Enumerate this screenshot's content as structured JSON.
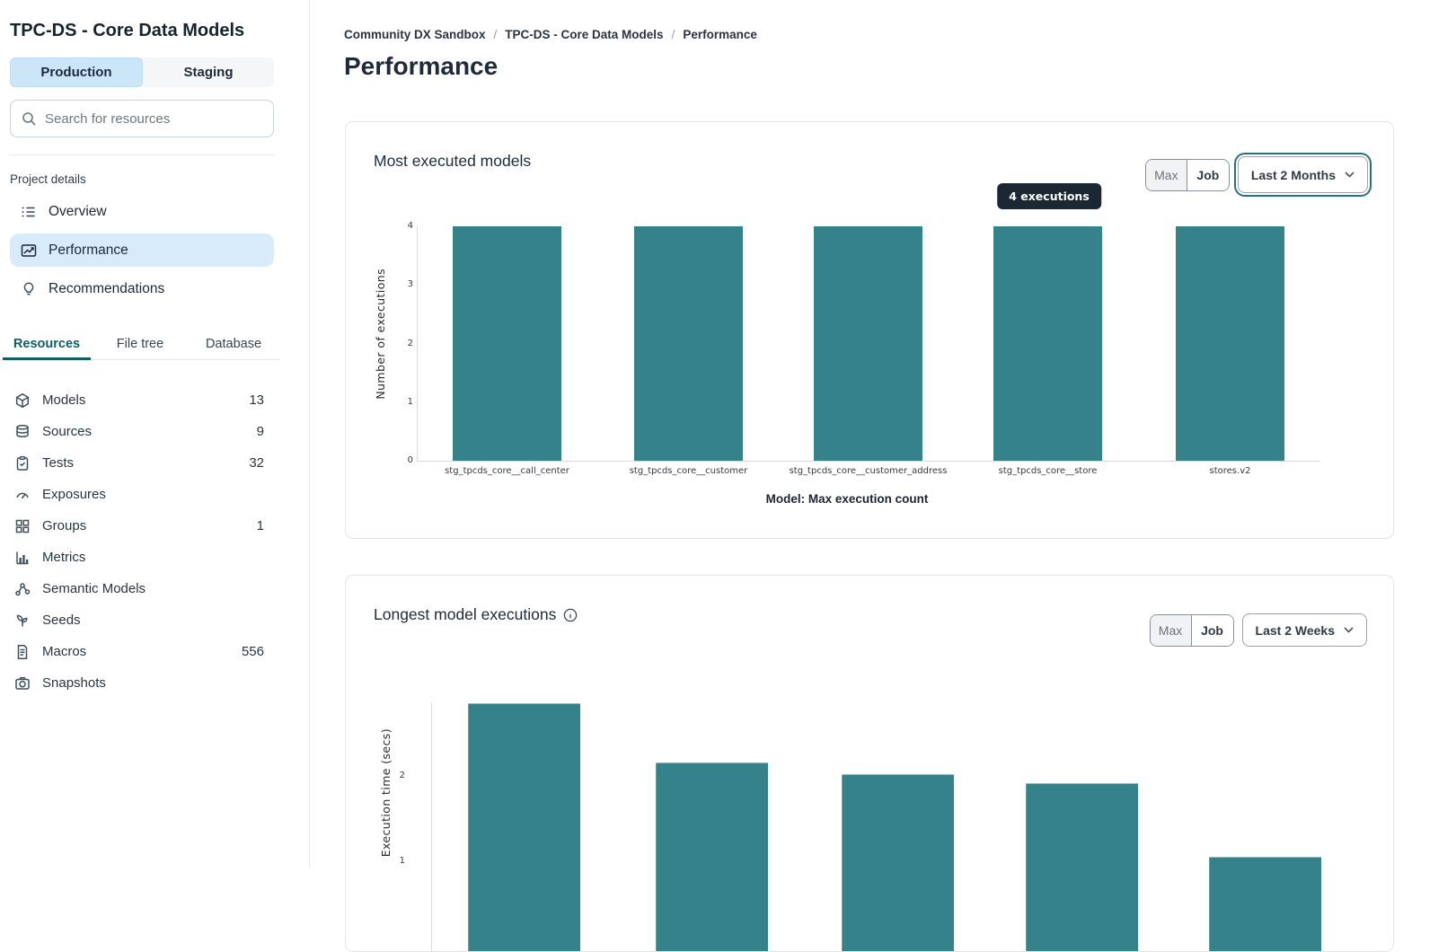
{
  "app": {
    "accent_teal": "#35828B",
    "selection_blue": "#CBE6F8",
    "tab_teal": "#0F5E66",
    "tooltip_bg": "#1B2733"
  },
  "sidebar": {
    "title": "TPC-DS - Core Data Models",
    "environment_tabs": [
      {
        "label": "Production",
        "selected": true
      },
      {
        "label": "Staging",
        "selected": false
      }
    ],
    "search": {
      "placeholder": "Search for resources"
    },
    "section_label": "Project details",
    "nav_items": [
      {
        "label": "Overview",
        "icon": "list-icon",
        "selected": false
      },
      {
        "label": "Performance",
        "icon": "trend-chart-icon",
        "selected": true
      },
      {
        "label": "Recommendations",
        "icon": "lightbulb-icon",
        "selected": false
      }
    ],
    "resource_tabs": [
      {
        "label": "Resources",
        "selected": true
      },
      {
        "label": "File tree",
        "selected": false
      },
      {
        "label": "Database",
        "selected": false
      }
    ],
    "resources": [
      {
        "label": "Models",
        "icon": "cube-icon",
        "count": "13"
      },
      {
        "label": "Sources",
        "icon": "database-icon",
        "count": "9"
      },
      {
        "label": "Tests",
        "icon": "clipboard-check-icon",
        "count": "32"
      },
      {
        "label": "Exposures",
        "icon": "gauge-icon",
        "count": ""
      },
      {
        "label": "Groups",
        "icon": "grid-icon",
        "count": "1"
      },
      {
        "label": "Metrics",
        "icon": "bar-chart-icon",
        "count": ""
      },
      {
        "label": "Semantic Models",
        "icon": "nodes-icon",
        "count": ""
      },
      {
        "label": "Seeds",
        "icon": "sprout-icon",
        "count": ""
      },
      {
        "label": "Macros",
        "icon": "document-icon",
        "count": "556"
      },
      {
        "label": "Snapshots",
        "icon": "camera-icon",
        "count": ""
      }
    ]
  },
  "main": {
    "breadcrumb": {
      "items": [
        "Community DX Sandbox",
        "TPC-DS - Core Data Models",
        "Performance"
      ],
      "separator": "/"
    },
    "page_title": "Performance",
    "cards": [
      {
        "title": "Most executed models",
        "view_toggle": {
          "options": [
            "Max",
            "Job"
          ],
          "selected": "Max"
        },
        "time_range": "Last 2 Months"
      },
      {
        "title": "Longest model executions",
        "has_info_icon": true,
        "view_toggle": {
          "options": [
            "Max",
            "Job"
          ],
          "selected": "Max"
        },
        "time_range": "Last 2 Weeks"
      }
    ]
  },
  "chart_data": [
    {
      "id": "most-executed-models",
      "type": "bar",
      "title": "Most executed models",
      "categories": [
        "stg_tpcds_core__call_center",
        "stg_tpcds_core__customer",
        "stg_tpcds_core__customer_address",
        "stg_tpcds_core__store",
        "stores.v2"
      ],
      "values": [
        4,
        4,
        4,
        4,
        4
      ],
      "xlabel": "Model: Max execution count",
      "ylabel": "Number of executions",
      "ylim": [
        0,
        4
      ],
      "yticks": [
        0,
        1,
        2,
        3,
        4
      ],
      "grid": false,
      "legend": "none",
      "bar_color": "#35828B",
      "tooltip_text": "4 executions",
      "tooltip_bar_index": 3
    },
    {
      "id": "longest-model-executions",
      "type": "bar",
      "title": "Longest model executions",
      "categories": [],
      "values": [
        2.85,
        2.16,
        2.02,
        1.92,
        1.05
      ],
      "ylabel": "Execution time (secs)",
      "yticks": [
        1,
        2
      ],
      "grid": false,
      "legend": "none",
      "bar_color": "#35828B",
      "note_values_estimated": true
    }
  ]
}
